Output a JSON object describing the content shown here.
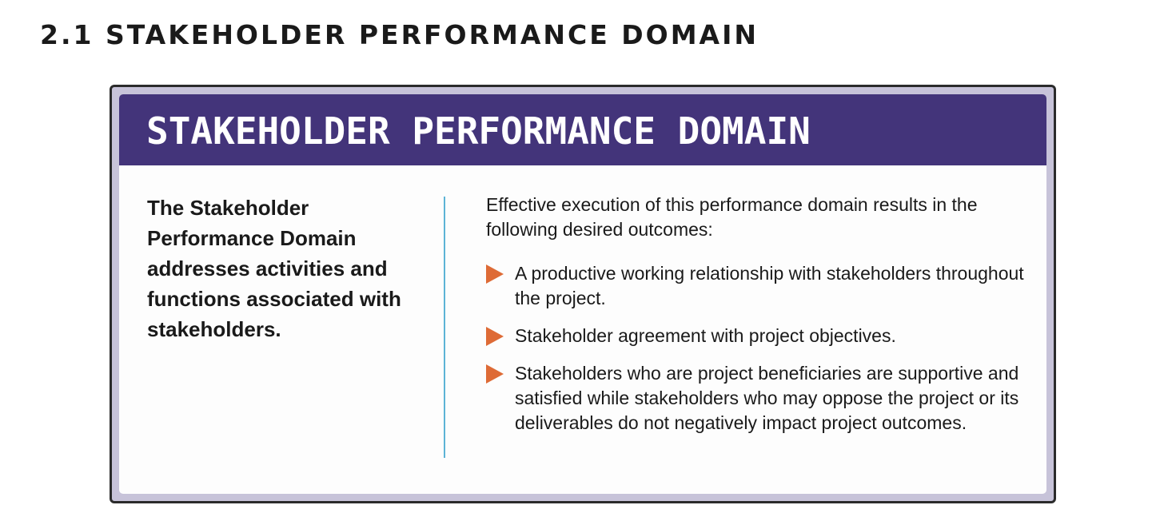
{
  "section": {
    "heading": "2.1 STAKEHOLDER PERFORMANCE DOMAIN"
  },
  "box": {
    "banner_title": "STAKEHOLDER PERFORMANCE DOMAIN",
    "intro": "The Stakeholder Performance Domain addresses activities and functions associated with stakeholders.",
    "outcomes_lead": "Effective execution of this performance domain results in the following desired outcomes:",
    "outcomes": [
      "A productive working relationship with stakeholders throughout the project.",
      "Stakeholder agreement with project objectives.",
      "Stakeholders who are project beneficiaries are supportive and satisfied while stakeholders who may oppose the project or its deliverables do not negatively impact project outcomes."
    ]
  },
  "colors": {
    "banner": "#43347a",
    "frame": "#c7c3d9",
    "bullet": "#de6b36",
    "divider": "#5cb3d6"
  },
  "icons": {
    "bullet": "triangle-right-icon"
  }
}
